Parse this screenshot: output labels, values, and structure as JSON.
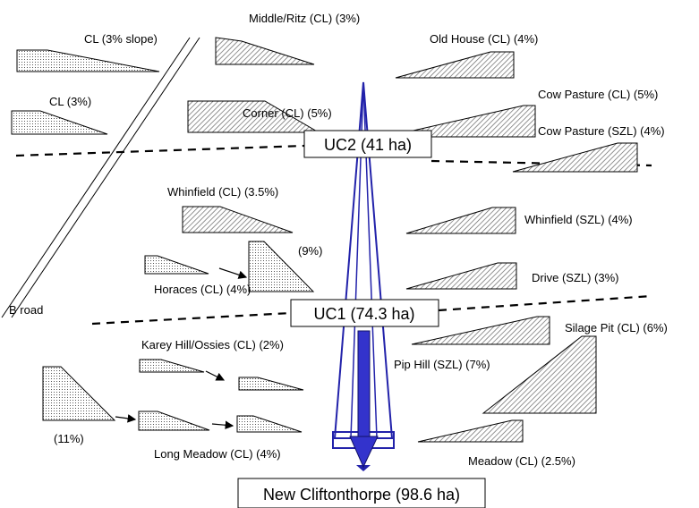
{
  "labels": {
    "cl_slope": "CL (3% slope)",
    "cl_3": "CL (3%)",
    "middle_ritz": "Middle/Ritz (CL) (3%)",
    "corner": "Corner (CL) (5%)",
    "old_house": "Old House (CL) (4%)",
    "cow_pasture_cl": "Cow Pasture (CL) (5%)",
    "cow_pasture_szl": "Cow Pasture (SZL) (4%)",
    "whinfield_cl": "Whinfield (CL) (3.5%)",
    "whinfield_szl": "Whinfield (SZL) (4%)",
    "pct_9": "(9%)",
    "horaces": "Horaces (CL) (4%)",
    "drive": "Drive (SZL) (3%)",
    "silage_pit": "Silage Pit (CL) (6%)",
    "b_road": "B road",
    "karey_hill": "Karey Hill/Ossies (CL) (2%)",
    "pip_hill": "Pip Hill (SZL) (7%)",
    "pct_11": "(11%)",
    "long_meadow": "Long Meadow (CL) (4%)",
    "meadow": "Meadow (CL) (2.5%)"
  },
  "boxes": {
    "uc2": "UC2 (41 ha)",
    "uc1": "UC1 (74.3 ha)",
    "outlet": "New Cliftonthorpe (98.6 ha)"
  }
}
